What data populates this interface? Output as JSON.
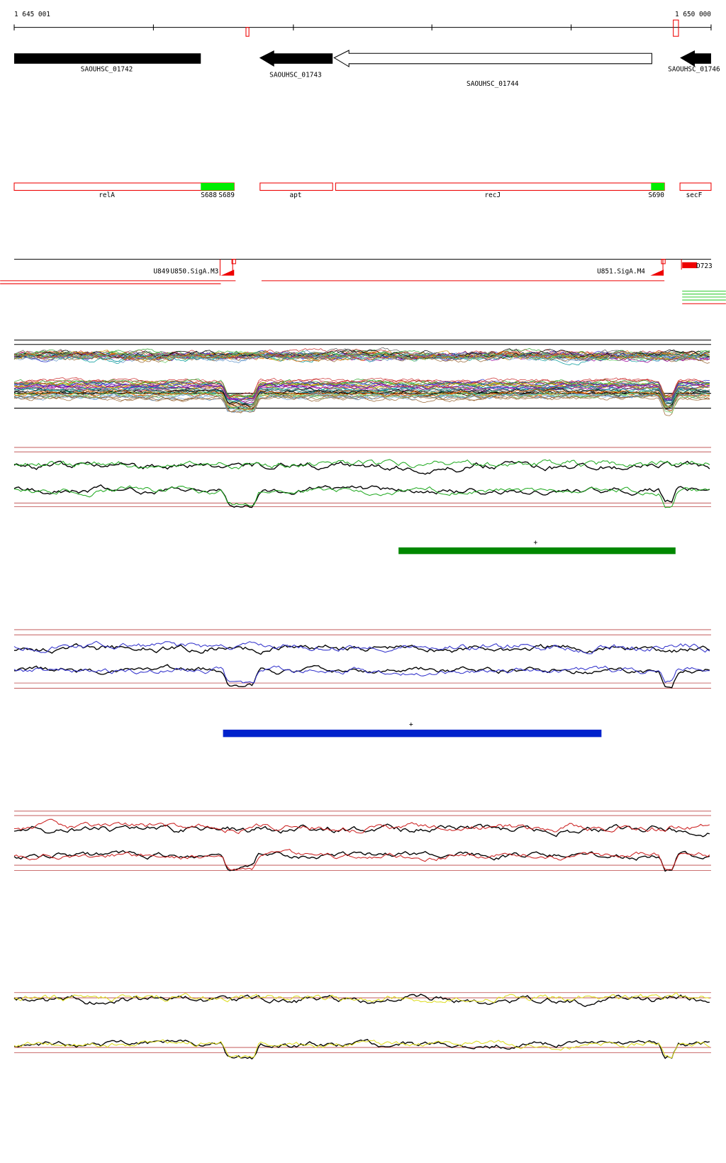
{
  "ruler": {
    "start_label": "1 645 001",
    "end_label": "1 650 000"
  },
  "genes": [
    {
      "label": "SAOUHSC_01742"
    },
    {
      "label": "SAOUHSC_01743"
    },
    {
      "label": "SAOUHSC_01744"
    },
    {
      "label": "SAOUHSC_01746"
    }
  ],
  "annotations": [
    {
      "label": "relA"
    },
    {
      "label": "S688"
    },
    {
      "label": "S689"
    },
    {
      "label": "apt"
    },
    {
      "label": "recJ"
    },
    {
      "label": "S690"
    },
    {
      "label": "secF"
    }
  ],
  "promoters": [
    {
      "label": "U849"
    },
    {
      "label": "U850.SigA.M3"
    },
    {
      "label": "U851.SigA.M4"
    },
    {
      "label": "D723"
    }
  ],
  "segments": [
    {
      "label": "+"
    },
    {
      "label": "+"
    }
  ]
}
